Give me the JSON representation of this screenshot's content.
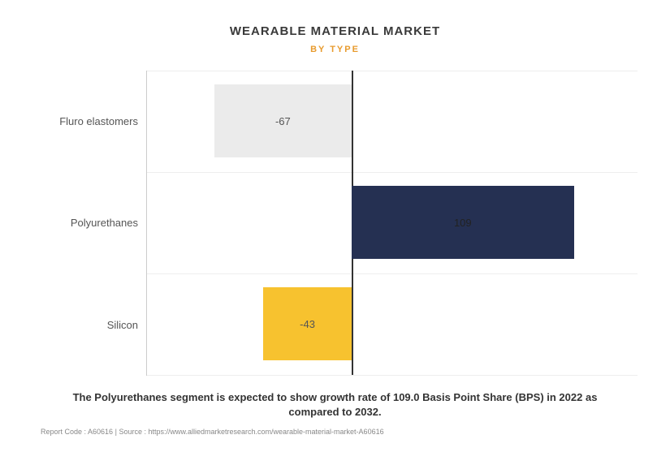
{
  "chart": {
    "type": "bar-horizontal",
    "title": "WEARABLE MATERIAL MARKET",
    "title_fontsize": 15,
    "subtitle": "BY TYPE",
    "subtitle_fontsize": 11,
    "subtitle_color": "#e89b2e",
    "categories": [
      "Fluro elastomers",
      "Polyurethanes",
      "Silicon"
    ],
    "values": [
      -67,
      109,
      -43
    ],
    "bar_colors": [
      "#ebebeb",
      "#253052",
      "#f7c22f"
    ],
    "value_label_colors": [
      "#555",
      "#222",
      "#555"
    ],
    "xlim": [
      -100,
      140
    ],
    "zero_line_color": "#333",
    "grid_color": "#eeeeee",
    "background_color": "#ffffff",
    "label_fontsize": 13,
    "value_fontsize": 13,
    "bar_height_pct": 24
  },
  "caption": "The Polyurethanes segment is expected to show growth rate of 109.0 Basis Point Share (BPS) in 2022 as compared to 2032.",
  "caption_fontsize": 13,
  "footer": {
    "report_code": "Report Code : A60616",
    "separator": "|",
    "source": "Source : https://www.alliedmarketresearch.com/wearable-material-market-A60616",
    "fontsize": 9
  }
}
